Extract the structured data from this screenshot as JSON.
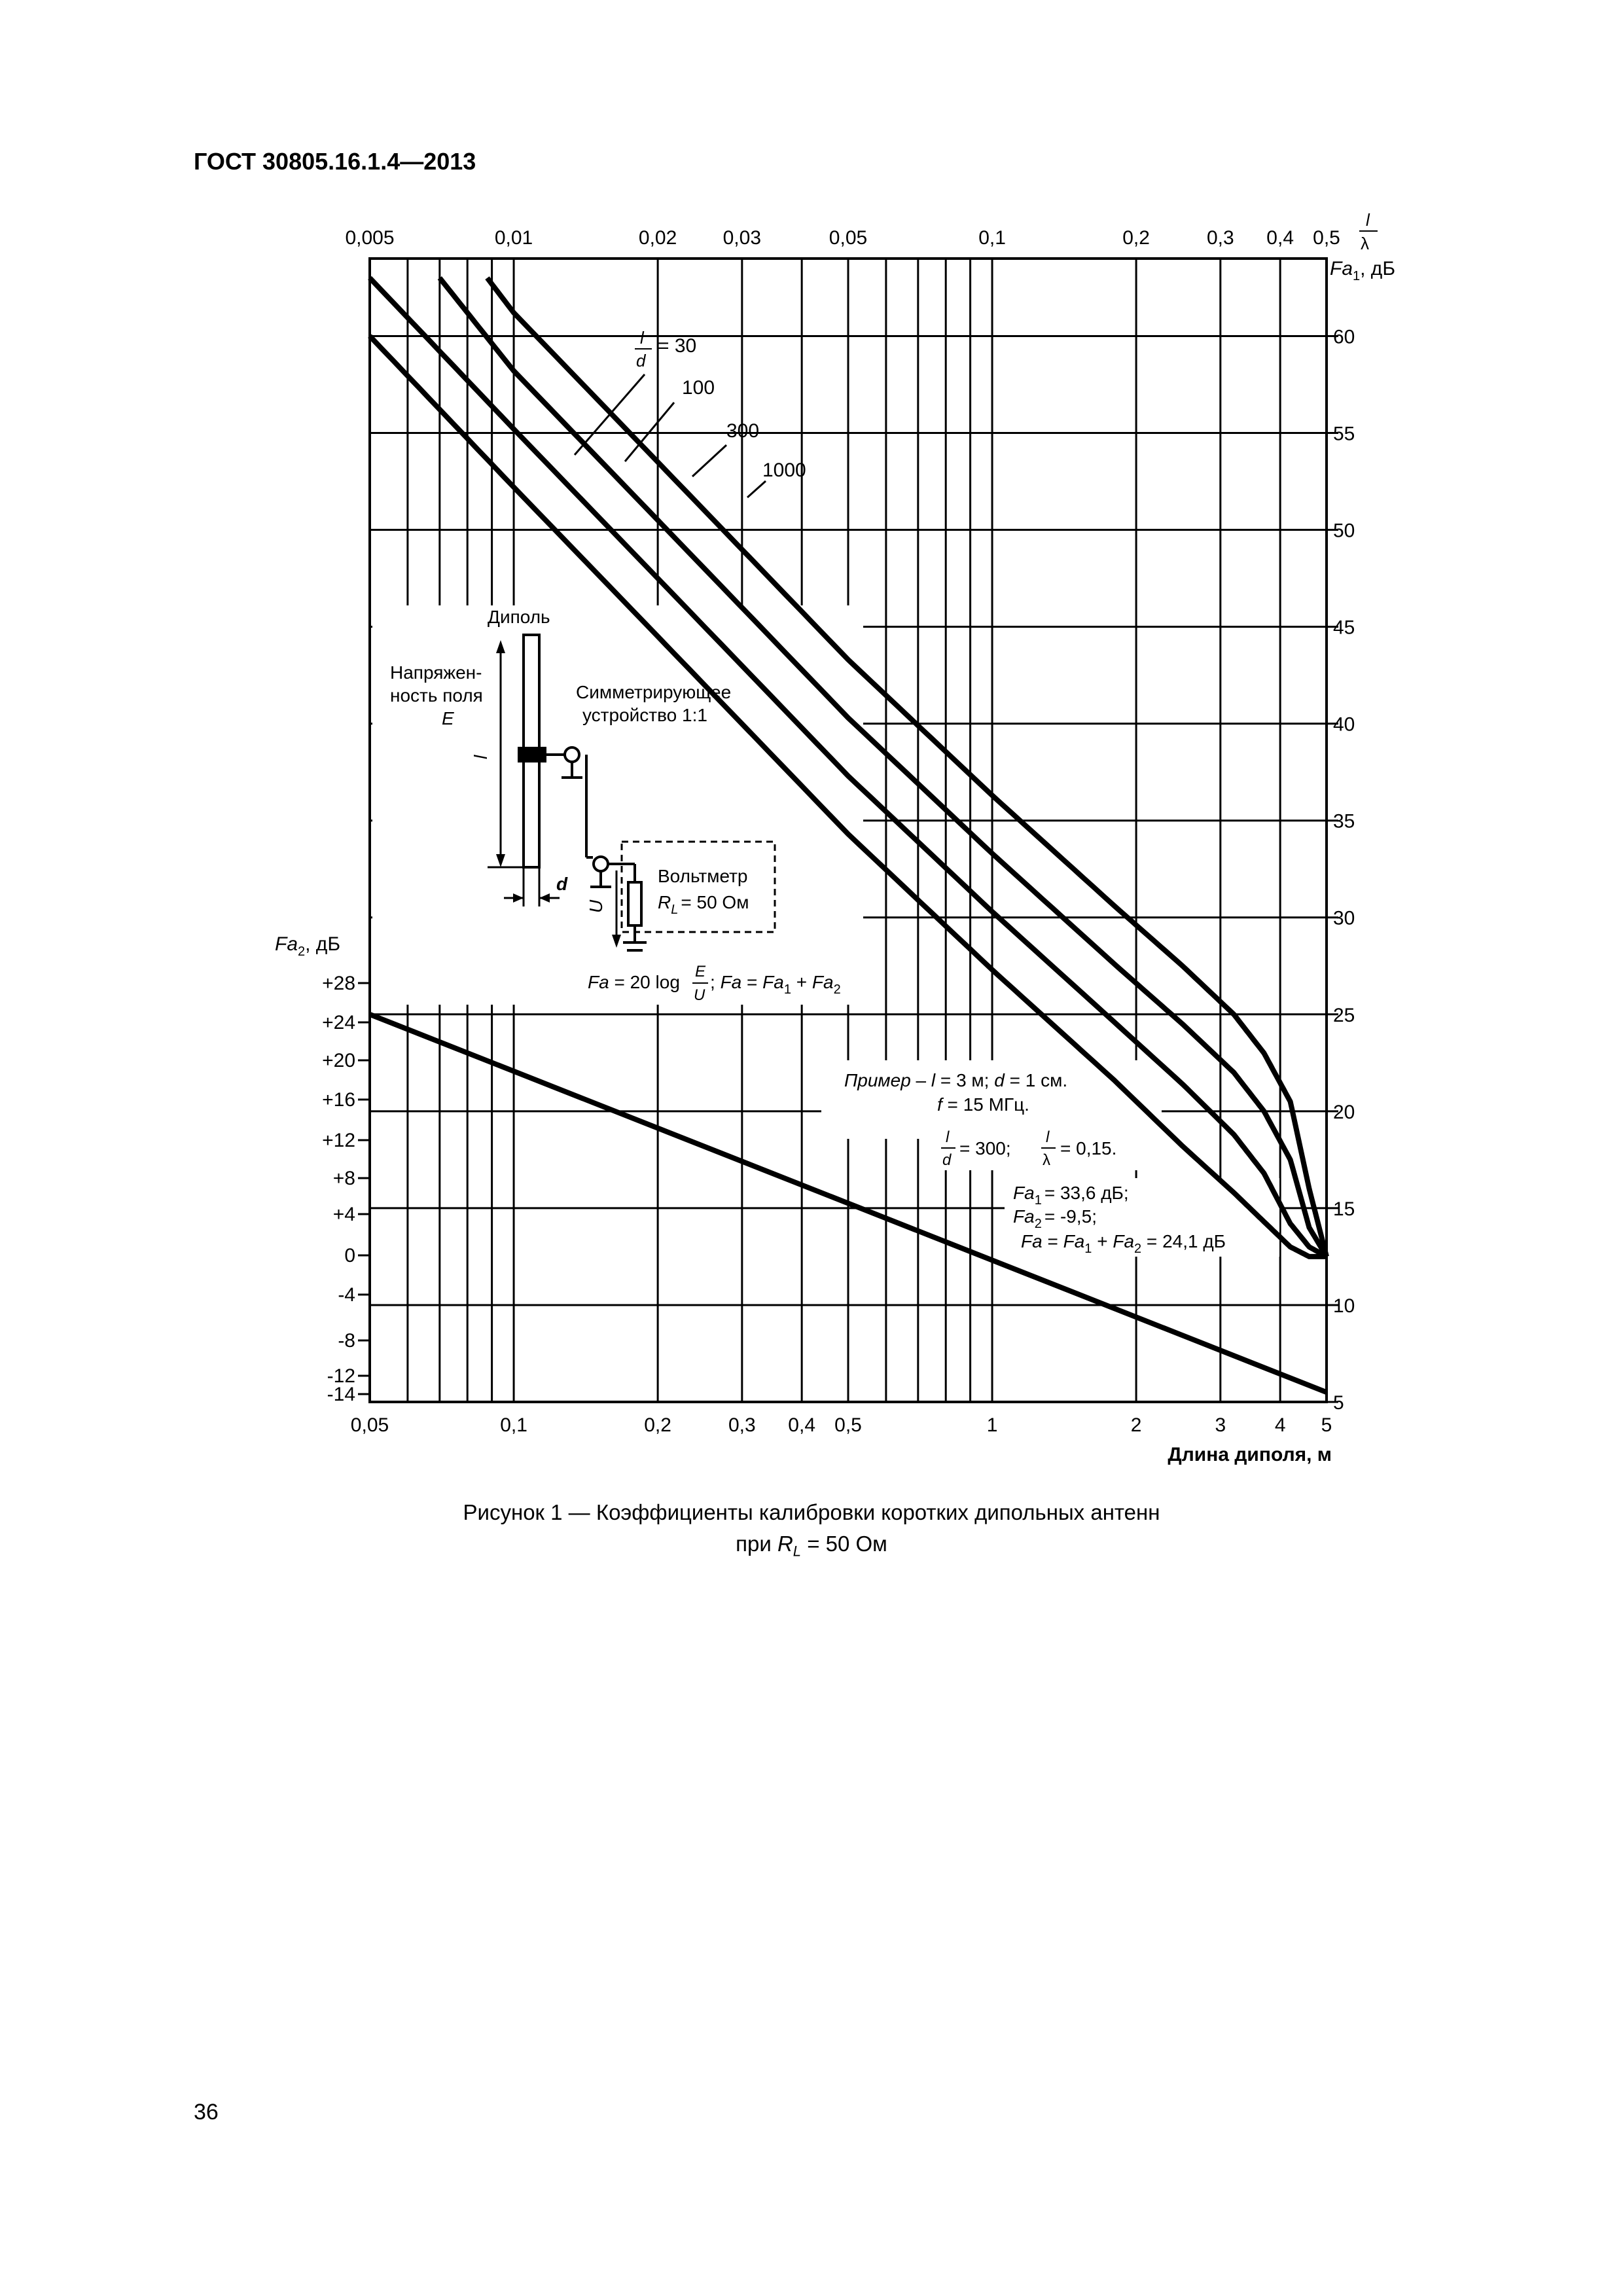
{
  "header": {
    "standard": "ГОСТ 30805.16.1.4—2013"
  },
  "caption": {
    "line1": "Рисунок 1 — Коэффициенты калибровки коротких дипольных антенн",
    "line2_prefix": "при ",
    "line2_var": "R",
    "line2_sub": "L",
    "line2_suffix": " = 50 Ом"
  },
  "page_number": "36",
  "chart_data": {
    "type": "line",
    "x_scale": "log",
    "xlim": [
      0.05,
      5
    ],
    "xlabel": "Длина диполя, м",
    "x_ticks": [
      "0,05",
      "0,1",
      "0,2",
      "0,3",
      "0,4",
      "0,5",
      "1",
      "2",
      "3",
      "4",
      "5"
    ],
    "x_tick_values": [
      0.05,
      0.1,
      0.2,
      0.3,
      0.4,
      0.5,
      1,
      2,
      3,
      4,
      5
    ],
    "top_x_ticks": [
      "0,005",
      "0,01",
      "0,02",
      "0,03",
      "0,05",
      "0,1",
      "0,2",
      "0,3",
      "0,4",
      "0,5"
    ],
    "top_x_label_num": "l",
    "top_x_label_den": "λ",
    "y_right": {
      "label_var": "Fa",
      "label_sub": "1",
      "label_unit": ", дБ",
      "ylim": [
        5,
        64
      ],
      "ticks": [
        "60",
        "55",
        "50",
        "45",
        "40",
        "35",
        "30",
        "25",
        "20",
        "15",
        "10",
        "5"
      ]
    },
    "y_left": {
      "label_var": "Fa",
      "label_sub": "2",
      "label_unit": ", дБ",
      "ticks": [
        "+28",
        "+24",
        "+20",
        "+16",
        "+12",
        "+8",
        "+4",
        "0",
        "-4",
        "-8",
        "-12",
        "-14"
      ]
    },
    "series": [
      {
        "name": "30",
        "x": [
          0.05,
          0.1,
          0.2,
          0.5,
          1,
          1.8,
          2.5,
          3.2,
          3.7,
          4.2,
          4.6,
          5
        ],
        "y": [
          60,
          52.2,
          44.5,
          34.3,
          27.3,
          21.6,
          18.2,
          15.8,
          14.3,
          13.0,
          12.5,
          12.5
        ]
      },
      {
        "name": "100",
        "x": [
          0.05,
          0.1,
          0.2,
          0.5,
          1,
          1.8,
          2.5,
          3.2,
          3.7,
          4.2,
          4.6,
          5
        ],
        "y": [
          63,
          55.2,
          47.5,
          37.3,
          30.3,
          24.6,
          21.4,
          18.8,
          16.8,
          14.2,
          13.0,
          12.5
        ]
      },
      {
        "name": "300",
        "x": [
          0.07,
          0.1,
          0.2,
          0.5,
          1,
          1.8,
          2.5,
          3.2,
          3.7,
          4.2,
          4.6,
          5
        ],
        "y": [
          63,
          58.2,
          50.5,
          40.3,
          33.3,
          27.6,
          24.5,
          22.0,
          20.0,
          17.5,
          14.0,
          12.5
        ]
      },
      {
        "name": "1000",
        "x": [
          0.088,
          0.1,
          0.2,
          0.5,
          1,
          1.8,
          2.5,
          3.2,
          3.7,
          4.2,
          4.6,
          5
        ],
        "y": [
          63,
          61.2,
          53.5,
          43.3,
          36.3,
          30.6,
          27.5,
          25.0,
          23.0,
          20.5,
          16.0,
          12.5
        ]
      },
      {
        "name": "Fa2",
        "x": [
          0.05,
          5
        ],
        "y": [
          25,
          5.5
        ]
      }
    ],
    "curve_label_prefix": "l/d = ",
    "annotations": {
      "dipole_label": "Диполь",
      "field_line1": "Напряжен-",
      "field_line2": "ность поля",
      "field_E": "E",
      "balun_line1": "Симметрирующее",
      "balun_line2": "устройство 1:1",
      "voltmeter": "Вольтметр",
      "voltmeter_load": "= 50 Ом",
      "label_l": "l",
      "label_d": "d",
      "label_U": "U",
      "formula": "Fa = 20 log E/U; Fa = Fa1 + Fa2",
      "example_line1": "Пример – l = 3 м; d = 1 см.",
      "example_line2": "f = 15 МГц.",
      "example_line3_a": "= 300;",
      "example_line3_b": "= 0,15.",
      "example_line4": "= 33,6 дБ;",
      "example_line5": "= -9,5;",
      "example_line6": "= 24,1 дБ"
    }
  }
}
